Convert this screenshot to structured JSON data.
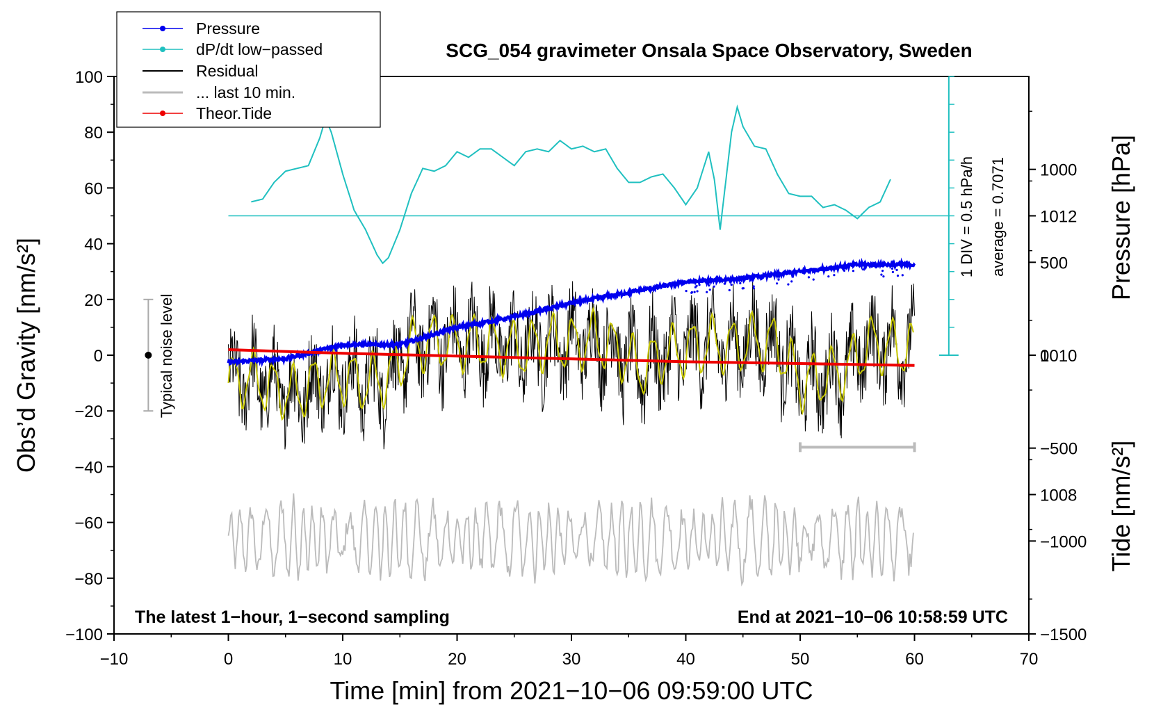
{
  "chart_data": {
    "type": "line",
    "title": "SCG_054 gravimeter Onsala Space Observatory, Sweden",
    "xlabel": "Time [min] from 2021−10−06 09:59:00 UTC",
    "ylabel_left": "Obs’d Gravity [nm/s²]",
    "ylabel_pressure": "Pressure [hPa]",
    "ylabel_tide": "Tide [nm/s²]",
    "xlim": [
      -10,
      70
    ],
    "ylim": [
      -100,
      100
    ],
    "pressure_lim": [
      1006,
      1014
    ],
    "tide_lim": [
      -1500,
      1500
    ],
    "x_ticks": [
      "−10",
      "0",
      "10",
      "20",
      "30",
      "40",
      "50",
      "60",
      "70"
    ],
    "x_tick_values": [
      -10,
      0,
      10,
      20,
      30,
      40,
      50,
      60,
      70
    ],
    "y_ticks": [
      "−100",
      "−80",
      "−60",
      "−40",
      "−20",
      "0",
      "20",
      "40",
      "60",
      "80",
      "100"
    ],
    "y_tick_values": [
      -100,
      -80,
      -60,
      -40,
      -20,
      0,
      20,
      40,
      60,
      80,
      100
    ],
    "pressure_ticks": [
      "1008",
      "1010",
      "1012"
    ],
    "pressure_tick_values": [
      1008,
      1010,
      1012
    ],
    "tide_ticks": [
      "−1500",
      "−1000",
      "−500",
      "0",
      "500",
      "1000"
    ],
    "tide_tick_values": [
      -1500,
      -1000,
      -500,
      0,
      500,
      1000
    ],
    "legend": {
      "position": "top-left",
      "entries": [
        {
          "label": "Pressure",
          "color": "#0000ee",
          "marker": true
        },
        {
          "label": "dP/dt low−passed",
          "color": "#20c0c0",
          "marker": true
        },
        {
          "label": "Residual",
          "color": "#000000",
          "marker": false
        },
        {
          "label": "... last 10 min.",
          "color": "#bbbbbb",
          "marker": false
        },
        {
          "label": "Theor.Tide",
          "color": "#ee0000",
          "marker": true
        }
      ]
    },
    "annotations": {
      "bottom_left": "The latest 1−hour, 1−second sampling",
      "bottom_right": "End at 2021−10−06 10:58:59 UTC",
      "noise": "Typical noise level",
      "dpdt_scale": "1 DIV = 0.5 hPa/h",
      "dpdt_average": "average = 0.7071"
    },
    "noise_bar": {
      "x": -7,
      "center": 0,
      "half_range": 20
    },
    "last10_bar": {
      "x_start": 50,
      "x_end": 60,
      "y": -33
    },
    "dpdt_scale_axis": {
      "x": 63,
      "y_bottom": 0,
      "y_top": 100,
      "baseline_y": 50
    },
    "series": {
      "pressure": {
        "name": "Pressure",
        "units": "hPa",
        "color": "#0000ee",
        "x": [
          0,
          5,
          10,
          15,
          20,
          25,
          30,
          35,
          40,
          45,
          50,
          55,
          60
        ],
        "values": [
          1009.9,
          1009.95,
          1010.15,
          1010.15,
          1010.4,
          1010.55,
          1010.75,
          1010.9,
          1011.05,
          1011.1,
          1011.2,
          1011.3,
          1011.3
        ]
      },
      "dpdt": {
        "name": "dP/dt low−passed",
        "units": "nm/s² (plot scale)",
        "color": "#20c0c0",
        "x": [
          2,
          3,
          4,
          5,
          6,
          7,
          8,
          8.5,
          9,
          10,
          11,
          12,
          13,
          13.5,
          14,
          15,
          16,
          17,
          18,
          19,
          20,
          21,
          22,
          23,
          24,
          25,
          26,
          27,
          28,
          29,
          30,
          31,
          32,
          33,
          34,
          35,
          36,
          37,
          38,
          39,
          40,
          41,
          42,
          42.5,
          43,
          44,
          44.5,
          45,
          46,
          47,
          48,
          49,
          50,
          51,
          52,
          53,
          54,
          55,
          56,
          57,
          58
        ],
        "values": [
          55,
          56,
          62,
          66,
          67,
          68,
          78,
          85,
          80,
          65,
          52,
          45,
          36,
          33,
          35,
          45,
          58,
          67,
          66,
          68,
          73,
          71,
          74,
          74,
          71,
          68,
          73,
          74,
          73,
          77,
          74,
          75,
          73,
          74,
          67,
          62,
          62,
          64,
          65,
          60,
          54,
          60,
          73,
          63,
          45,
          80,
          89,
          82,
          75,
          74,
          65,
          58,
          57,
          57,
          53,
          54,
          52,
          49,
          53,
          55,
          64
        ]
      },
      "residual": {
        "name": "Residual",
        "units": "nm/s²",
        "color": "#000000",
        "x": [
          0,
          2,
          4,
          6,
          8,
          10,
          12,
          14,
          16,
          18,
          20,
          22,
          24,
          26,
          28,
          30,
          32,
          34,
          36,
          38,
          40,
          42,
          44,
          46,
          48,
          50,
          52,
          54,
          56,
          58,
          60
        ],
        "values": [
          -10,
          -8,
          -12,
          -14,
          -9,
          -8,
          -10,
          -8,
          3,
          5,
          4,
          5,
          3,
          2,
          5,
          4,
          6,
          2,
          -5,
          0,
          2,
          4,
          3,
          5,
          4,
          -10,
          -8,
          -5,
          4,
          3,
          2
        ],
        "spread": 18
      },
      "smoothed": {
        "name": "Residual (smoothed)",
        "units": "nm/s²",
        "color": "#c8c800",
        "x": [
          0,
          2,
          4,
          6,
          8,
          10,
          12,
          14,
          16,
          18,
          20,
          22,
          24,
          26,
          28,
          30,
          32,
          34,
          36,
          38,
          40,
          42,
          44,
          46,
          48,
          50,
          52,
          54,
          56,
          58,
          60
        ],
        "values": [
          -10,
          -8,
          -12,
          -14,
          -9,
          -8,
          -10,
          -8,
          3,
          5,
          4,
          5,
          3,
          2,
          5,
          4,
          6,
          2,
          -5,
          0,
          2,
          4,
          3,
          5,
          4,
          -10,
          -8,
          -5,
          4,
          3,
          2
        ],
        "amplitude": 9
      },
      "last10": {
        "name": "... last 10 min.",
        "units": "nm/s²",
        "color": "#bbbbbb",
        "x_range": [
          0,
          60
        ],
        "offset": -70,
        "center": -66,
        "amplitude": 10
      },
      "tide": {
        "name": "Theor.Tide",
        "units": "nm/s²",
        "color": "#ee0000",
        "x": [
          0,
          10,
          20,
          30,
          40,
          50,
          60
        ],
        "values": [
          30,
          10,
          -5,
          -20,
          -35,
          -45,
          -55
        ]
      }
    }
  }
}
